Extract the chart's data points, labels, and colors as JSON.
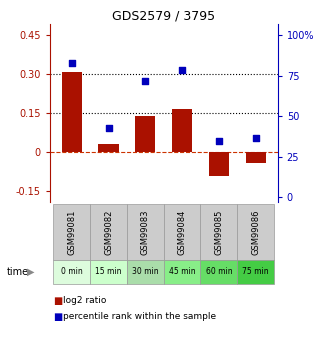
{
  "title": "GDS2579 / 3795",
  "samples": [
    "GSM99081",
    "GSM99082",
    "GSM99083",
    "GSM99084",
    "GSM99085",
    "GSM99086"
  ],
  "time_labels": [
    "0 min",
    "15 min",
    "30 min",
    "45 min",
    "60 min",
    "75 min"
  ],
  "time_colors": [
    "#ddfcdd",
    "#ccffcc",
    "#aaddaa",
    "#88ee88",
    "#66dd66",
    "#44cc44"
  ],
  "log2_ratio": [
    0.305,
    0.03,
    0.14,
    0.165,
    -0.09,
    -0.04
  ],
  "percentile_rank": [
    83,
    43,
    72,
    79,
    35,
    37
  ],
  "bar_color": "#aa1100",
  "dot_color": "#0000bb",
  "ylim_left": [
    -0.19,
    0.49
  ],
  "ylim_right": [
    -2.7,
    107
  ],
  "yticks_left": [
    -0.15,
    0.0,
    0.15,
    0.3,
    0.45
  ],
  "yticks_right": [
    0,
    25,
    50,
    75,
    100
  ],
  "hline_zero_color": "#cc3300",
  "hline_zero_style": "--",
  "hline_15_color": "#000000",
  "hline_30_color": "#000000",
  "bg_color": "#ffffff",
  "sample_bg_color": "#cccccc",
  "sample_edge_color": "#999999",
  "legend_log2": "log2 ratio",
  "legend_pct": "percentile rank within the sample",
  "left_tick_labels": [
    "-0.15",
    "0",
    "0.15",
    "0.30",
    "0.45"
  ],
  "right_tick_labels": [
    "0",
    "25",
    "50",
    "75",
    "100%"
  ]
}
